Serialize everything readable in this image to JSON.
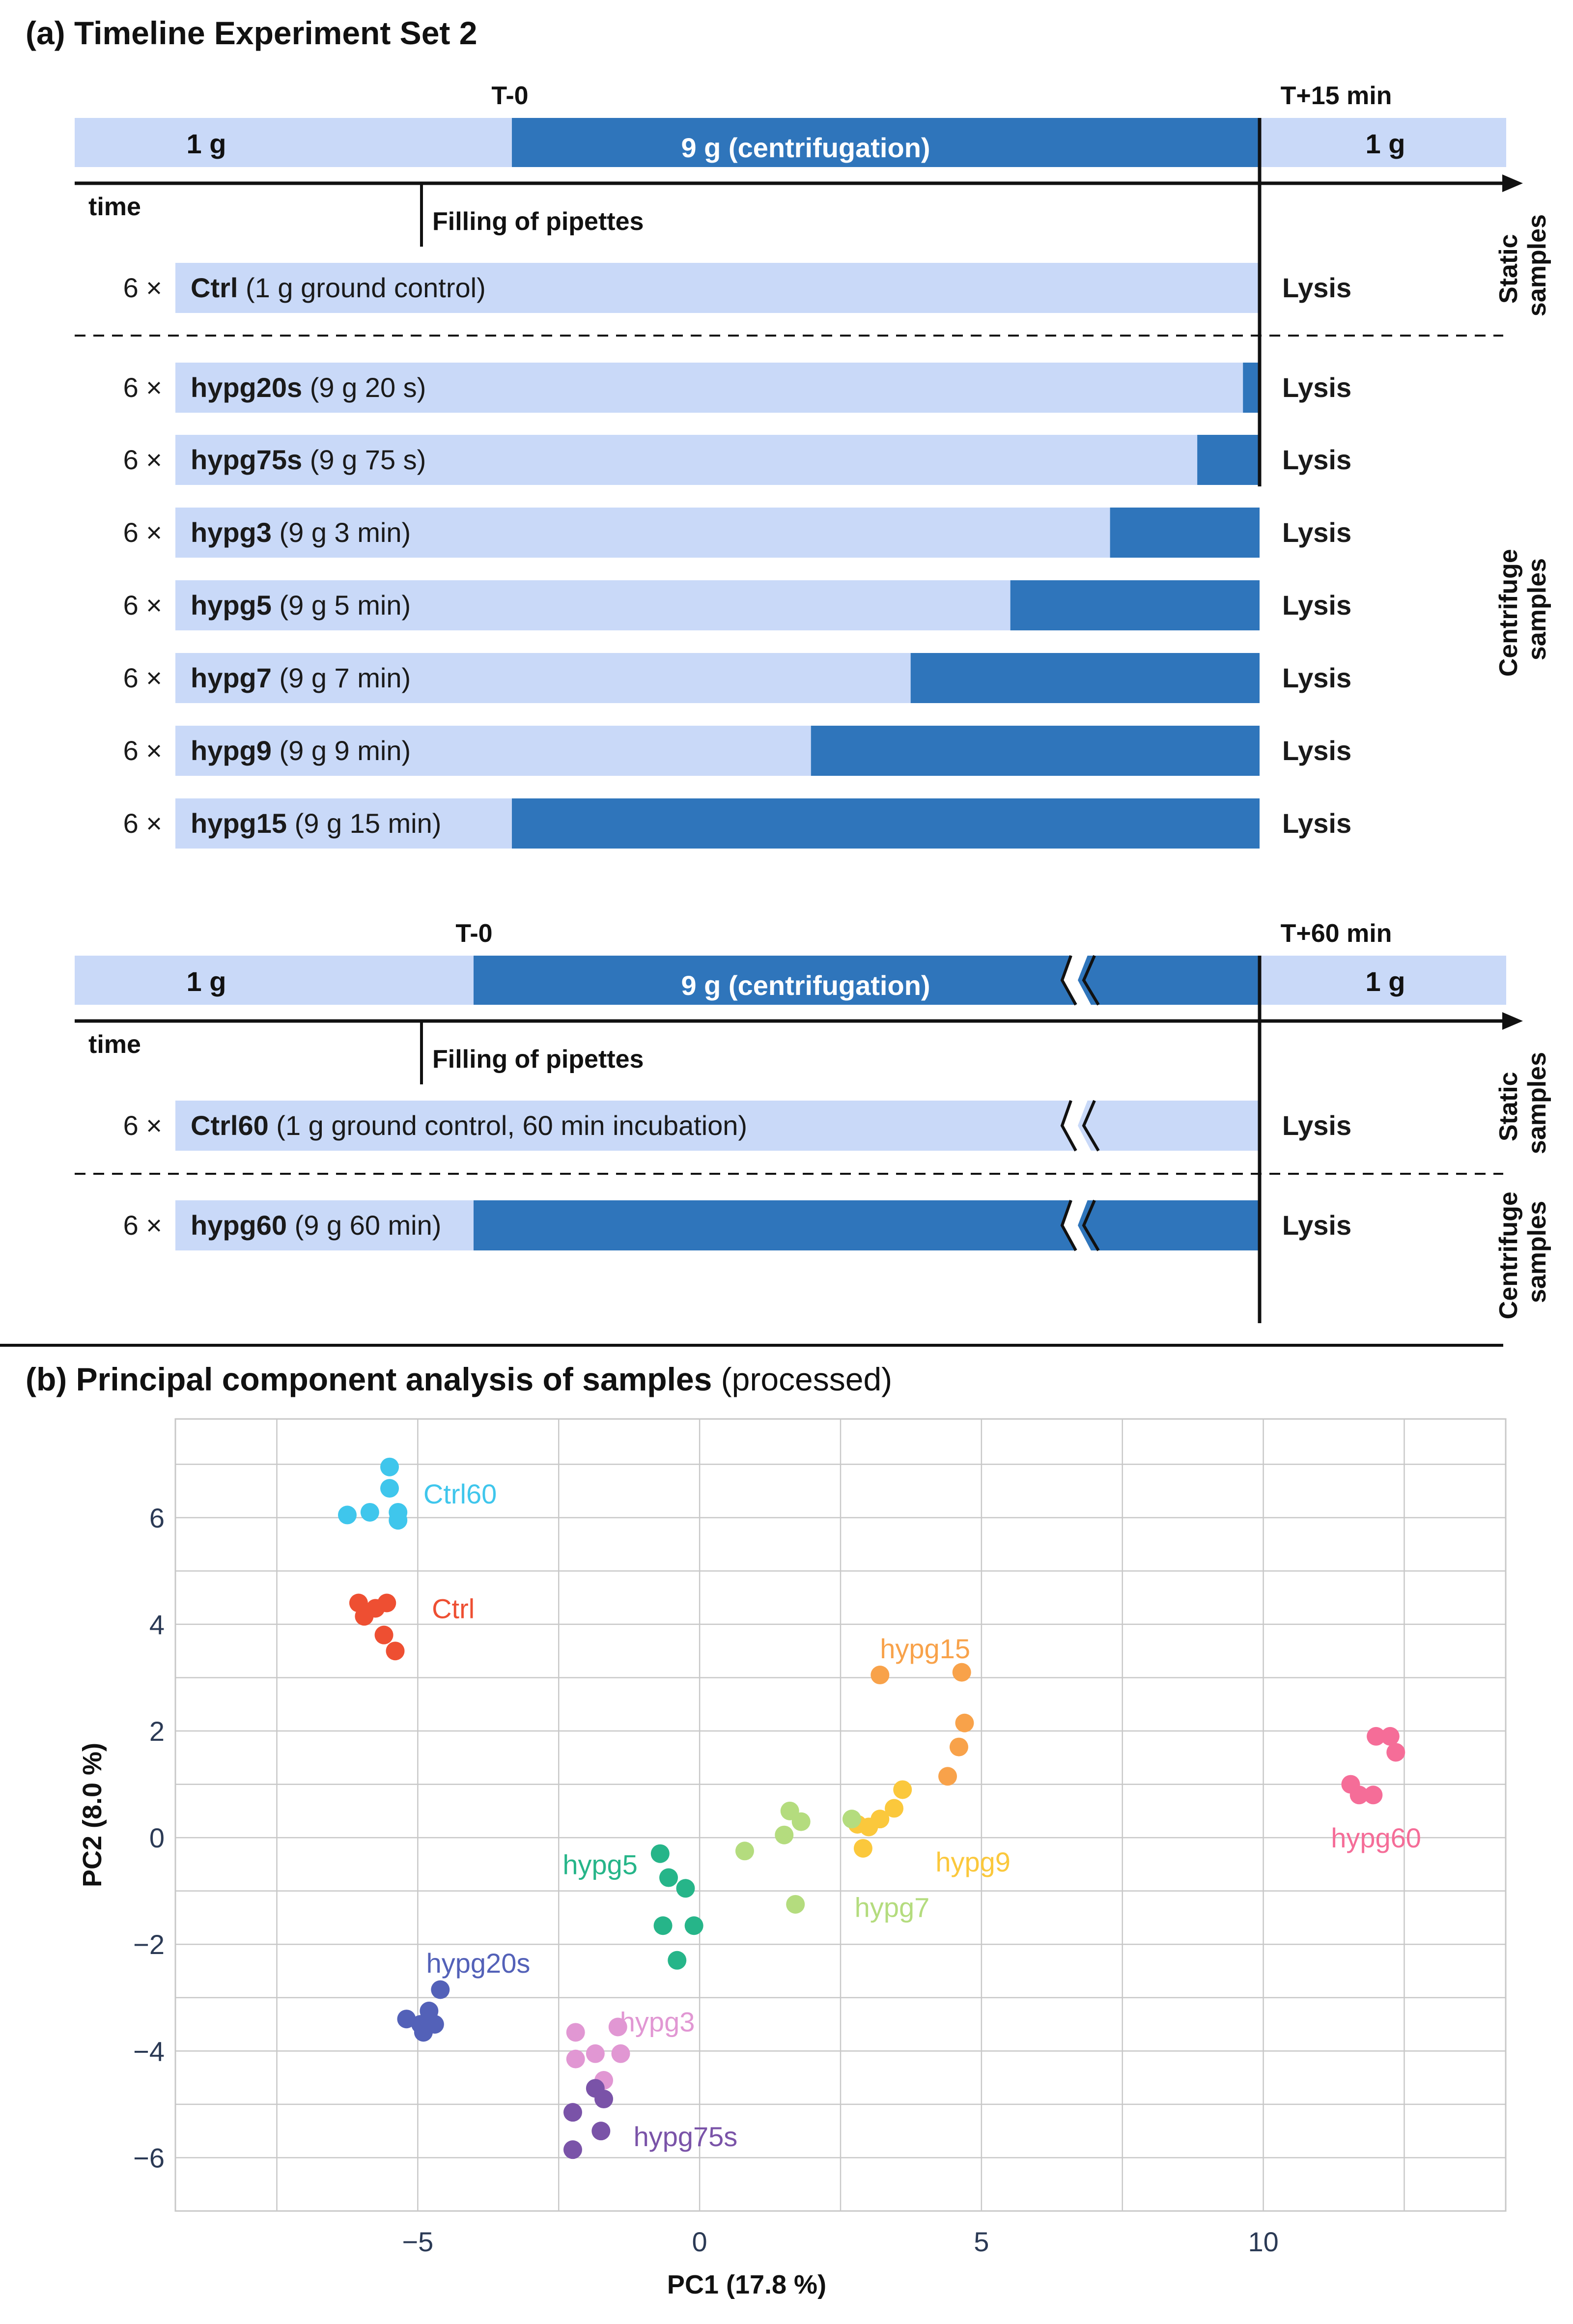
{
  "panel_a": {
    "title": "(a) Timeline Experiment Set 2",
    "block1": {
      "t0": "T-0",
      "tend": "T+15 min",
      "pre_label": "1 g",
      "main_label": "9 g (centrifugation)",
      "post_label": "1 g",
      "time_label": "time",
      "filling_label": "Filling of pipettes",
      "static_label_1": "Static",
      "static_label_2": "samples",
      "centrifuge_label_1": "Centrifuge",
      "centrifuge_label_2": "samples",
      "rows": [
        {
          "count": "6 ×",
          "name": "Ctrl",
          "desc": " (1 g ground control)",
          "lysis": "Lysis",
          "dark_minutes": 0
        },
        {
          "count": "6 ×",
          "name": "hypg20s",
          "desc": " (9 g 20 s)",
          "lysis": "Lysis",
          "dark_minutes": 0.333
        },
        {
          "count": "6 ×",
          "name": "hypg75s",
          "desc": " (9 g 75 s)",
          "lysis": "Lysis",
          "dark_minutes": 1.25
        },
        {
          "count": "6 ×",
          "name": "hypg3",
          "desc": " (9 g 3 min)",
          "lysis": "Lysis",
          "dark_minutes": 3
        },
        {
          "count": "6 ×",
          "name": "hypg5",
          "desc": " (9 g 5 min)",
          "lysis": "Lysis",
          "dark_minutes": 5
        },
        {
          "count": "6 ×",
          "name": "hypg7",
          "desc": " (9 g 7 min)",
          "lysis": "Lysis",
          "dark_minutes": 7
        },
        {
          "count": "6 ×",
          "name": "hypg9",
          "desc": " (9 g 9 min)",
          "lysis": "Lysis",
          "dark_minutes": 9
        },
        {
          "count": "6 ×",
          "name": "hypg15",
          "desc": " (9 g 15 min)",
          "lysis": "Lysis",
          "dark_minutes": 15
        }
      ]
    },
    "block2": {
      "t0": "T-0",
      "tend": "T+60 min",
      "pre_label": "1 g",
      "main_label": "9 g (centrifugation)",
      "post_label": "1 g",
      "time_label": "time",
      "filling_label": "Filling of pipettes",
      "static_label_1": "Static",
      "static_label_2": "samples",
      "centrifuge_label_1": "Centrifuge",
      "centrifuge_label_2": "samples",
      "rows": [
        {
          "count": "6 ×",
          "name": "Ctrl60",
          "desc": " (1 g ground control, 60 min incubation)",
          "lysis": "Lysis",
          "dark_minutes": 0
        },
        {
          "count": "6 ×",
          "name": "hypg60",
          "desc": " (9 g 60 min)",
          "lysis": "Lysis",
          "dark_minutes": 60
        }
      ]
    }
  },
  "colors": {
    "light": "#c9d9f8",
    "dark": "#2f75bb",
    "grid": "#c8c8c8",
    "text": "#111111"
  },
  "chart_data": {
    "type": "scatter",
    "title_bold": "(b) Principal component analysis of samples",
    "title_normal": " (processed)",
    "xlabel": "PC1 (17.8 %)",
    "ylabel": "PC2 (8.0 %)",
    "xlim": [
      -9.3,
      14.3
    ],
    "ylim": [
      -7.0,
      7.85
    ],
    "xticks": [
      -5,
      0,
      5,
      10
    ],
    "xtick_labels": [
      "−5",
      "0",
      "5",
      "10"
    ],
    "yticks": [
      -6,
      -4,
      -2,
      0,
      2,
      4,
      6
    ],
    "ytick_labels": [
      "−6",
      "−4",
      "−2",
      "0",
      "2",
      "4",
      "6"
    ],
    "series": [
      {
        "name": "Ctrl60",
        "color": "#3fc6ec",
        "label_at": [
          -4.9,
          6.45
        ],
        "label_anchor": "start",
        "points": [
          [
            -5.5,
            6.95
          ],
          [
            -5.5,
            6.55
          ],
          [
            -5.35,
            6.1
          ],
          [
            -5.35,
            5.95
          ],
          [
            -5.85,
            6.1
          ],
          [
            -6.25,
            6.05
          ]
        ]
      },
      {
        "name": "Ctrl",
        "color": "#ee4f32",
        "label_at": [
          -4.75,
          4.3
        ],
        "label_anchor": "start",
        "points": [
          [
            -6.05,
            4.4
          ],
          [
            -5.95,
            4.15
          ],
          [
            -5.75,
            4.3
          ],
          [
            -5.55,
            4.4
          ],
          [
            -5.6,
            3.8
          ],
          [
            -5.4,
            3.5
          ]
        ]
      },
      {
        "name": "hypg15",
        "color": "#f8a24a",
        "label_at": [
          4.0,
          3.55
        ],
        "label_anchor": "middle",
        "points": [
          [
            3.2,
            3.05
          ],
          [
            4.65,
            3.1
          ],
          [
            4.7,
            2.15
          ],
          [
            4.6,
            1.7
          ],
          [
            4.4,
            1.15
          ]
        ]
      },
      {
        "name": "hypg60",
        "color": "#f56d98",
        "label_at": [
          12.0,
          0.0
        ],
        "label_anchor": "middle",
        "points": [
          [
            12.0,
            1.9
          ],
          [
            12.25,
            1.9
          ],
          [
            12.35,
            1.6
          ],
          [
            11.55,
            1.0
          ],
          [
            11.7,
            0.8
          ],
          [
            11.95,
            0.8
          ]
        ]
      },
      {
        "name": "hypg9",
        "color": "#fbc83c",
        "label_at": [
          4.85,
          -0.45
        ],
        "label_anchor": "middle",
        "points": [
          [
            3.6,
            0.9
          ],
          [
            3.45,
            0.55
          ],
          [
            3.2,
            0.35
          ],
          [
            3.0,
            0.2
          ],
          [
            2.8,
            0.25
          ],
          [
            2.9,
            -0.2
          ]
        ]
      },
      {
        "name": "hypg7",
        "color": "#b4dc7e",
        "label_at": [
          2.75,
          -1.3
        ],
        "label_anchor": "start",
        "points": [
          [
            1.6,
            0.5
          ],
          [
            1.8,
            0.3
          ],
          [
            1.5,
            0.05
          ],
          [
            0.8,
            -0.25
          ],
          [
            2.7,
            0.35
          ],
          [
            1.7,
            -1.25
          ]
        ]
      },
      {
        "name": "hypg5",
        "color": "#26b589",
        "label_at": [
          -1.1,
          -0.5
        ],
        "label_anchor": "end",
        "points": [
          [
            -0.7,
            -0.3
          ],
          [
            -0.55,
            -0.75
          ],
          [
            -0.25,
            -0.95
          ],
          [
            -0.65,
            -1.65
          ],
          [
            -0.1,
            -1.65
          ],
          [
            -0.4,
            -2.3
          ]
        ]
      },
      {
        "name": "hypg20s",
        "color": "#5361b8",
        "label_at": [
          -4.85,
          -2.35
        ],
        "label_anchor": "start",
        "points": [
          [
            -4.6,
            -2.85
          ],
          [
            -4.8,
            -3.25
          ],
          [
            -5.2,
            -3.4
          ],
          [
            -4.95,
            -3.5
          ],
          [
            -4.7,
            -3.5
          ],
          [
            -4.9,
            -3.65
          ]
        ]
      },
      {
        "name": "hypg3",
        "color": "#e197d3",
        "label_at": [
          -0.75,
          -3.45
        ],
        "label_anchor": "middle",
        "points": [
          [
            -2.2,
            -3.65
          ],
          [
            -1.45,
            -3.55
          ],
          [
            -2.2,
            -4.15
          ],
          [
            -1.85,
            -4.05
          ],
          [
            -1.4,
            -4.05
          ],
          [
            -1.7,
            -4.55
          ]
        ]
      },
      {
        "name": "hypg75s",
        "color": "#7a53a8",
        "label_at": [
          -0.25,
          -5.6
        ],
        "label_anchor": "middle",
        "points": [
          [
            -1.85,
            -4.7
          ],
          [
            -1.7,
            -4.9
          ],
          [
            -2.25,
            -5.15
          ],
          [
            -1.75,
            -5.5
          ],
          [
            -2.25,
            -5.85
          ]
        ]
      }
    ]
  }
}
